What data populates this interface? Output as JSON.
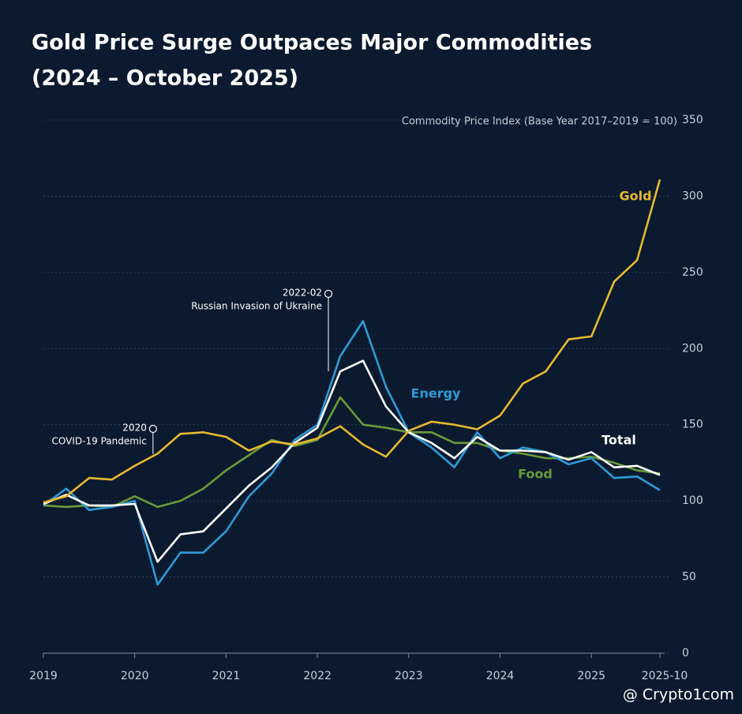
{
  "chart_data": {
    "type": "line",
    "title": "Gold Price Surge Outpaces Major Commodities",
    "subtitle": "(2024 – October 2025)",
    "y_label": "Commodity Price Index (Base Year 2017–2019 = 100)",
    "x": [
      2019,
      2019.25,
      2019.5,
      2019.75,
      2020,
      2020.25,
      2020.5,
      2020.75,
      2021,
      2021.25,
      2021.5,
      2021.75,
      2022,
      2022.25,
      2022.5,
      2022.75,
      2023,
      2023.25,
      2023.5,
      2023.75,
      2024,
      2024.25,
      2024.5,
      2024.75,
      2025,
      2025.25,
      2025.5,
      2025.75
    ],
    "series": [
      {
        "name": "Gold",
        "color": "#e8b830",
        "values": [
          99,
          103,
          115,
          114,
          123,
          131,
          144,
          145,
          142,
          133,
          139,
          137,
          141,
          149,
          137,
          129,
          146,
          152,
          150,
          147,
          156,
          177,
          185,
          206,
          208,
          244,
          258,
          311
        ]
      },
      {
        "name": "Energy",
        "color": "#2d9bd8",
        "values": [
          97,
          108,
          94,
          96,
          100,
          45,
          66,
          66,
          80,
          103,
          118,
          140,
          150,
          195,
          218,
          175,
          145,
          135,
          122,
          145,
          128,
          135,
          132,
          124,
          128,
          115,
          116,
          107
        ]
      },
      {
        "name": "Total",
        "color": "#ffffff",
        "values": [
          98,
          104,
          97,
          97,
          98,
          60,
          78,
          80,
          95,
          110,
          122,
          138,
          148,
          185,
          192,
          162,
          145,
          138,
          128,
          142,
          133,
          133,
          132,
          127,
          132,
          122,
          123,
          117
        ]
      },
      {
        "name": "Food",
        "color": "#6a9a3a",
        "values": [
          97,
          96,
          97,
          96,
          103,
          96,
          100,
          108,
          120,
          130,
          140,
          136,
          140,
          168,
          150,
          148,
          145,
          145,
          138,
          138,
          133,
          131,
          128,
          128,
          129,
          125,
          120,
          118
        ]
      }
    ],
    "xlim": [
      2019,
      2025.75
    ],
    "xticks": [
      2019,
      2020,
      2021,
      2022,
      2023,
      2024,
      2025,
      {
        "value": 2025.75,
        "label": "2025-10"
      }
    ],
    "ylim": [
      0,
      350
    ],
    "yticks": [
      0,
      50,
      100,
      150,
      200,
      250,
      300,
      350
    ],
    "grid": true,
    "annotations": [
      {
        "x": 2020.2,
        "date": "2020",
        "text": "COVID-19 Pandemic"
      },
      {
        "x": 2022.12,
        "date": "2022-02",
        "text": "Russian Invasion of Ukraine"
      }
    ],
    "watermark": "@ Crypto1com"
  }
}
